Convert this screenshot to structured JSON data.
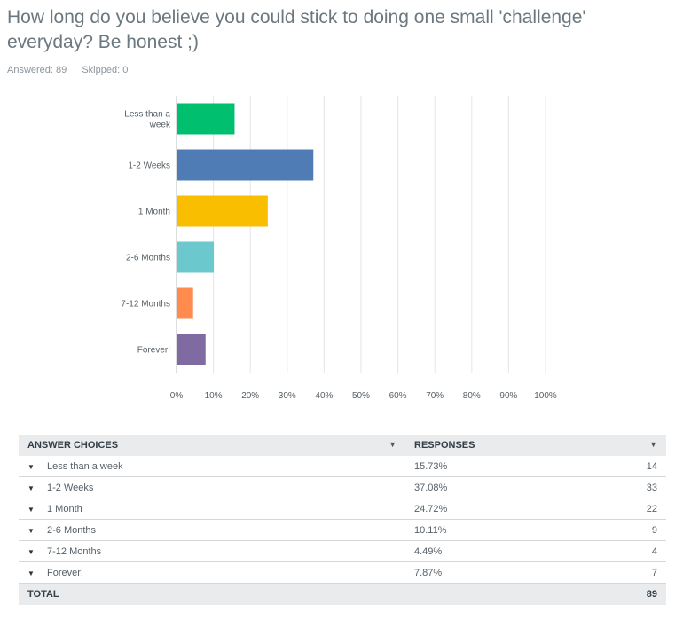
{
  "question": "How long do you believe you could stick to doing one small 'challenge' everyday? Be honest ;)",
  "answered_label": "Answered: 89",
  "skipped_label": "Skipped: 0",
  "chart_data": {
    "type": "bar",
    "orientation": "horizontal",
    "categories": [
      "Less than a week",
      "1-2 Weeks",
      "1 Month",
      "2-6 Months",
      "7-12 Months",
      "Forever!"
    ],
    "values": [
      15.73,
      37.08,
      24.72,
      10.11,
      4.49,
      7.87
    ],
    "colors": [
      "#00bf6f",
      "#507cb6",
      "#f9be00",
      "#6bc8cd",
      "#ff8b4f",
      "#7f6aa1"
    ],
    "xlim": [
      0,
      100
    ],
    "xticks": [
      "0%",
      "10%",
      "20%",
      "30%",
      "40%",
      "50%",
      "60%",
      "70%",
      "80%",
      "90%",
      "100%"
    ],
    "grid": true
  },
  "table": {
    "headers": [
      "ANSWER CHOICES",
      "RESPONSES"
    ],
    "rows": [
      {
        "choice": "Less than a week",
        "percent": "15.73%",
        "count": "14"
      },
      {
        "choice": "1-2 Weeks",
        "percent": "37.08%",
        "count": "33"
      },
      {
        "choice": "1 Month",
        "percent": "24.72%",
        "count": "22"
      },
      {
        "choice": "2-6 Months",
        "percent": "10.11%",
        "count": "9"
      },
      {
        "choice": "7-12 Months",
        "percent": "4.49%",
        "count": "4"
      },
      {
        "choice": "Forever!",
        "percent": "7.87%",
        "count": "7"
      }
    ],
    "total_label": "TOTAL",
    "total": "89"
  }
}
